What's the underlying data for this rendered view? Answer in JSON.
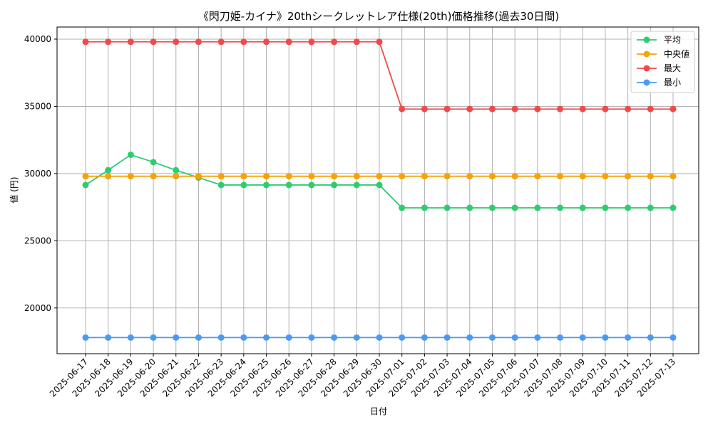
{
  "chart_data": {
    "type": "line",
    "title": "《閃刀姫-カイナ》20thシークレットレア仕様(20th)価格推移(過去30日間)",
    "xlabel": "日付",
    "ylabel": "値 (円)",
    "ylim": [
      16600,
      40900
    ],
    "yticks": [
      20000,
      25000,
      30000,
      35000,
      40000
    ],
    "grid": true,
    "legend_position": "top-right",
    "x": [
      "2025-06-17",
      "2025-06-18",
      "2025-06-19",
      "2025-06-20",
      "2025-06-21",
      "2025-06-22",
      "2025-06-23",
      "2025-06-24",
      "2025-06-25",
      "2025-06-26",
      "2025-06-27",
      "2025-06-28",
      "2025-06-29",
      "2025-06-30",
      "2025-07-01",
      "2025-07-02",
      "2025-07-03",
      "2025-07-04",
      "2025-07-05",
      "2025-07-06",
      "2025-07-07",
      "2025-07-08",
      "2025-07-09",
      "2025-07-10",
      "2025-07-11",
      "2025-07-12",
      "2025-07-13"
    ],
    "series": [
      {
        "name": "平均",
        "color": "#2ecc71",
        "values": [
          29150,
          30250,
          31400,
          30850,
          30250,
          29700,
          29150,
          29150,
          29150,
          29150,
          29150,
          29150,
          29150,
          29150,
          27450,
          27450,
          27450,
          27450,
          27450,
          27450,
          27450,
          27450,
          27450,
          27450,
          27450,
          27450,
          27450
        ]
      },
      {
        "name": "中央値",
        "color": "#f5a30a",
        "values": [
          29800,
          29800,
          29800,
          29800,
          29800,
          29800,
          29800,
          29800,
          29800,
          29800,
          29800,
          29800,
          29800,
          29800,
          29800,
          29800,
          29800,
          29800,
          29800,
          29800,
          29800,
          29800,
          29800,
          29800,
          29800,
          29800,
          29800
        ]
      },
      {
        "name": "最大",
        "color": "#f04a4a",
        "values": [
          39800,
          39800,
          39800,
          39800,
          39800,
          39800,
          39800,
          39800,
          39800,
          39800,
          39800,
          39800,
          39800,
          39800,
          34800,
          34800,
          34800,
          34800,
          34800,
          34800,
          34800,
          34800,
          34800,
          34800,
          34800,
          34800,
          34800
        ]
      },
      {
        "name": "最小",
        "color": "#4a9af0",
        "values": [
          17800,
          17800,
          17800,
          17800,
          17800,
          17800,
          17800,
          17800,
          17800,
          17800,
          17800,
          17800,
          17800,
          17800,
          17800,
          17800,
          17800,
          17800,
          17800,
          17800,
          17800,
          17800,
          17800,
          17800,
          17800,
          17800,
          17800
        ]
      }
    ]
  }
}
